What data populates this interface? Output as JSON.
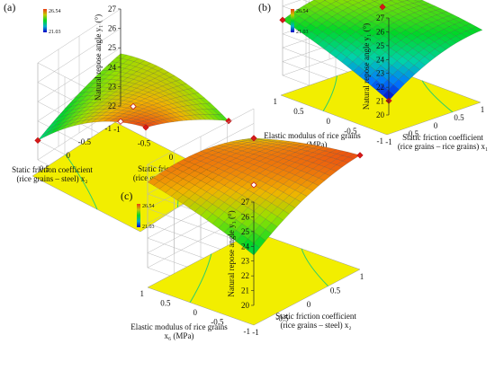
{
  "chart_data": [
    {
      "type": "surface3d",
      "panel_label": "(a)",
      "zlabel": "Natural repose angle y₁ (°)",
      "xlabel": [
        "Static friction coefficient",
        "(rice grains – rice grains) x₁"
      ],
      "ylabel": [
        "Static friction coefficient",
        "(rice grains – steel) x₂"
      ],
      "x_ticks": [
        "-1",
        "-0.5",
        "0",
        "0.5",
        "1"
      ],
      "y_ticks": [
        "-1",
        "-0.5",
        "0",
        "0.5"
      ],
      "z_ticks": [
        "22",
        "23",
        "24",
        "25",
        "26",
        "27"
      ],
      "zlim": [
        22,
        27
      ],
      "colorbar": {
        "max": "26.54",
        "min": "21.03"
      },
      "surface_corners": {
        "x-1_y-1": 24.7,
        "x1_y-1": 24.1,
        "x-1_y1": 23.0,
        "x1_y1": 26.54
      },
      "design_points": [
        {
          "x": 1,
          "y": 1,
          "z": 26.54
        },
        {
          "x": 0,
          "y": 0,
          "z": 24.8
        },
        {
          "x": -1,
          "y": 1,
          "z": 23.0
        },
        {
          "x": 1,
          "y": -1,
          "z": 24.1
        },
        {
          "x": -1,
          "y": -1,
          "z": 21.2
        }
      ]
    },
    {
      "type": "surface3d",
      "panel_label": "(b)",
      "zlabel": "Natural repose angle y₁ (°)",
      "xlabel": [
        "Static friction coefficient",
        "(rice grains – rice grains) x₁"
      ],
      "ylabel": [
        "Elastic modulus of rice grains",
        "x₆ (MPa)"
      ],
      "x_ticks": [
        "-1",
        "-0.5",
        "0",
        "0.5",
        "1"
      ],
      "y_ticks": [
        "-1",
        "-0.5",
        "0",
        "0.5",
        "1"
      ],
      "z_ticks": [
        "20",
        "21",
        "22",
        "23",
        "24",
        "25",
        "26",
        "27"
      ],
      "zlim": [
        20,
        27
      ],
      "colorbar": {
        "max": "26.54",
        "min": "21.03"
      },
      "surface_corners": {
        "x-1_y-1": 21.03,
        "x1_y-1": 23.8,
        "x-1_y1": 24.0,
        "x1_y1": 24.4
      },
      "design_points": [
        {
          "x": -1,
          "y": 1,
          "z": 24.0
        },
        {
          "x": 0,
          "y": 0,
          "z": 25.2
        },
        {
          "x": 1,
          "y": 1,
          "z": 24.4
        },
        {
          "x": -1,
          "y": -1,
          "z": 21.03
        }
      ]
    },
    {
      "type": "surface3d",
      "panel_label": "(c)",
      "zlabel": "Natural repose angle y₁ (°)",
      "xlabel": [
        "Static friction coefficient",
        "(rice grains – steel) x₂"
      ],
      "ylabel": [
        "Elastic modulus of rice grains",
        "x₆ (MPa)"
      ],
      "x_ticks": [
        "-1",
        "-0.5",
        "0",
        "0.5",
        "1"
      ],
      "y_ticks": [
        "-1",
        "-0.5",
        "0",
        "0.5",
        "1"
      ],
      "z_ticks": [
        "20",
        "21",
        "22",
        "23",
        "24",
        "25",
        "26",
        "27"
      ],
      "zlim": [
        20,
        27
      ],
      "colorbar": {
        "max": "26.54",
        "min": "21.03"
      },
      "surface_corners": {
        "x-1_y-1": 23.4,
        "x1_y-1": 26.4,
        "x-1_y1": 25.8,
        "x1_y1": 25.0
      },
      "design_points": [
        {
          "x": 1,
          "y": -1,
          "z": 26.4
        },
        {
          "x": 0,
          "y": 0,
          "z": 25.0
        },
        {
          "x": 1,
          "y": 1,
          "z": 25.0
        }
      ]
    }
  ]
}
